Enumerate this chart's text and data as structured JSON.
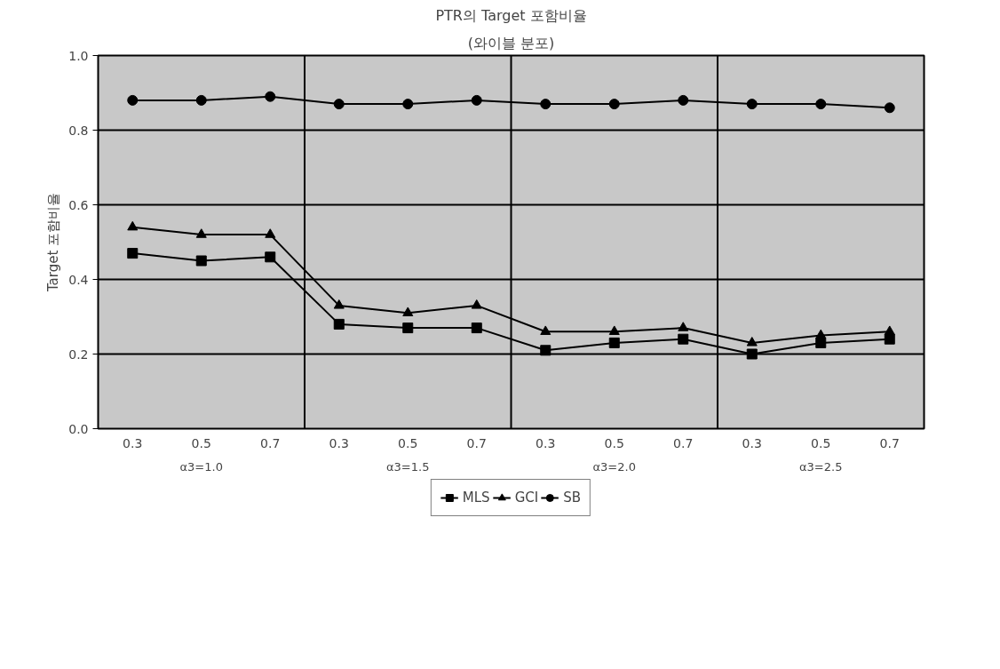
{
  "chart_data": {
    "type": "line",
    "title": "PTR의 Target 포함비율",
    "subtitle": "(와이블 분포)",
    "ylabel": "Target 포함비율",
    "categories": [
      "0.3",
      "0.5",
      "0.7",
      "0.3",
      "0.5",
      "0.7",
      "0.3",
      "0.5",
      "0.7",
      "0.3",
      "0.5",
      "0.7"
    ],
    "annotations": [
      "α3=1.0",
      "α3=1.5",
      "α3=2.0",
      "α3=2.5"
    ],
    "series": [
      {
        "name": "MLS",
        "color": "#000000",
        "marker": "square",
        "values": [
          0.47,
          0.45,
          0.46,
          0.28,
          0.27,
          0.27,
          0.21,
          0.23,
          0.24,
          0.2,
          0.23,
          0.24
        ]
      },
      {
        "name": "GCI",
        "color": "#000000",
        "marker": "triangle",
        "values": [
          0.54,
          0.52,
          0.52,
          0.33,
          0.31,
          0.33,
          0.26,
          0.26,
          0.27,
          0.23,
          0.25,
          0.26
        ]
      },
      {
        "name": "SB",
        "color": "#000000",
        "marker": "circle",
        "values": [
          0.88,
          0.88,
          0.89,
          0.87,
          0.87,
          0.88,
          0.87,
          0.87,
          0.88,
          0.87,
          0.87,
          0.86
        ]
      }
    ],
    "ylim": [
      0,
      1
    ],
    "yticks": [
      {
        "value": 0,
        "label": "0.0"
      },
      0.2,
      0.4,
      0.6,
      0.8,
      {
        "value": 1,
        "label": "1.0"
      }
    ],
    "grid": "y",
    "legend": "bottom"
  }
}
